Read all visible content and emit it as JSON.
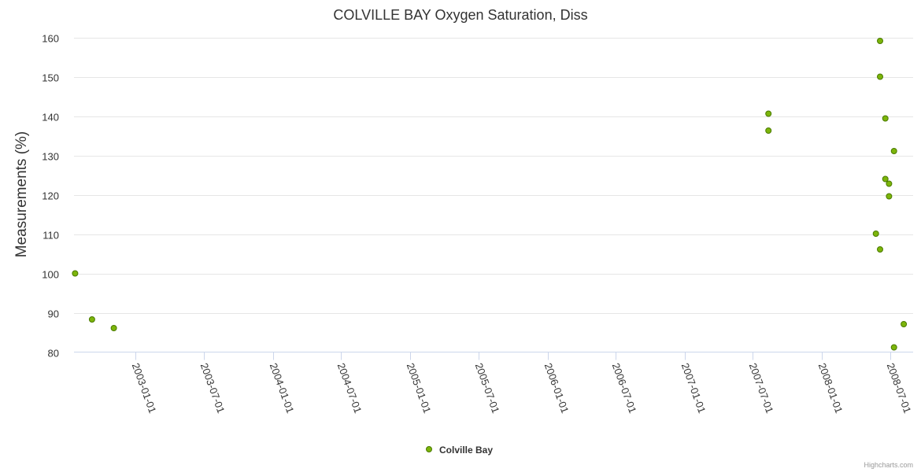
{
  "chart_data": {
    "type": "scatter",
    "title": "COLVILLE BAY Oxygen Saturation, Diss",
    "xlabel": "",
    "ylabel": "Measurements (%)",
    "ylim": [
      80,
      160
    ],
    "yticks": [
      80,
      90,
      100,
      110,
      120,
      130,
      140,
      150,
      160
    ],
    "xlim": [
      "2002-07-21",
      "2008-08-31"
    ],
    "xticks": [
      "2003-01-01",
      "2003-07-01",
      "2004-01-01",
      "2004-07-01",
      "2005-01-01",
      "2005-07-01",
      "2006-01-01",
      "2006-07-01",
      "2007-01-01",
      "2007-07-01",
      "2008-01-01",
      "2008-07-01"
    ],
    "grid": true,
    "legend_position": "bottom-center",
    "series": [
      {
        "name": "Colville Bay",
        "color": "#7cb50a",
        "points": [
          {
            "x": "2002-07-24",
            "y": 100
          },
          {
            "x": "2002-09-07",
            "y": 88.3
          },
          {
            "x": "2002-11-04",
            "y": 86.1
          },
          {
            "x": "2007-08-12",
            "y": 140.6
          },
          {
            "x": "2007-08-12",
            "y": 136.3
          },
          {
            "x": "2008-05-24",
            "y": 110.1
          },
          {
            "x": "2008-06-04",
            "y": 159.1
          },
          {
            "x": "2008-06-04",
            "y": 150
          },
          {
            "x": "2008-06-04",
            "y": 106.1
          },
          {
            "x": "2008-06-18",
            "y": 139.4
          },
          {
            "x": "2008-06-18",
            "y": 124
          },
          {
            "x": "2008-06-28",
            "y": 122.8
          },
          {
            "x": "2008-06-28",
            "y": 119.6
          },
          {
            "x": "2008-07-11",
            "y": 131.1
          },
          {
            "x": "2008-07-11",
            "y": 81.2
          },
          {
            "x": "2008-08-06",
            "y": 87.1
          }
        ]
      }
    ]
  },
  "credits": "Highcharts.com"
}
